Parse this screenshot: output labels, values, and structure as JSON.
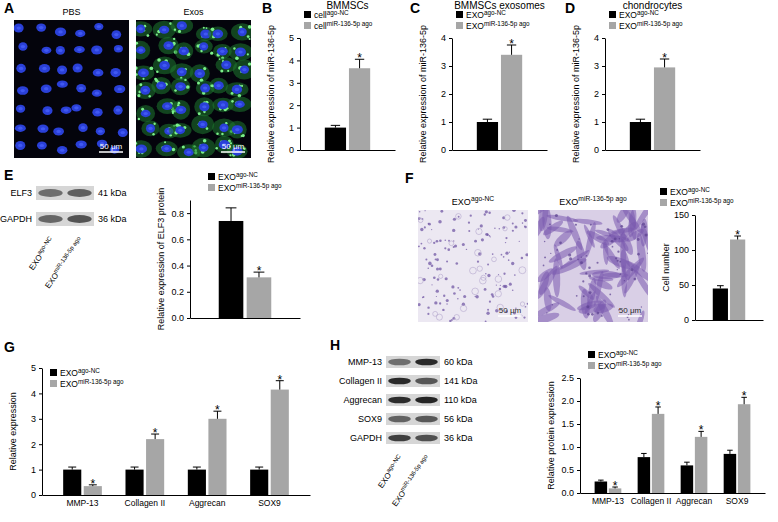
{
  "chart_data": [
    {
      "type": "bar",
      "panel": "B",
      "title": "BMMSCs",
      "ylabel": "Relative expression of miR-136-5p",
      "categories": [
        null
      ],
      "series": [
        {
          "name": "cell",
          "name_superscript": "ago-NC",
          "color": "#000000",
          "values": [
            1.0
          ],
          "errors": [
            0.1
          ]
        },
        {
          "name": "cell",
          "name_superscript": "miR-136-5p ago",
          "color": "#a6a6a6",
          "values": [
            3.65
          ],
          "errors": [
            0.4
          ],
          "annotations": [
            "*"
          ]
        }
      ],
      "ylim": [
        0,
        5
      ],
      "yticks": [
        0,
        1,
        2,
        3,
        4,
        5
      ],
      "legend": "top"
    },
    {
      "type": "bar",
      "panel": "C",
      "title": "BMMSCs exosomes",
      "ylabel": "Relative expression of miR-136-5p",
      "categories": [
        null
      ],
      "series": [
        {
          "name": "EXO",
          "name_superscript": "ago-NC",
          "color": "#000000",
          "values": [
            1.0
          ],
          "errors": [
            0.1
          ]
        },
        {
          "name": "EXO",
          "name_superscript": "miR-136-5p ago",
          "color": "#a6a6a6",
          "values": [
            3.4
          ],
          "errors": [
            0.35
          ],
          "annotations": [
            "*"
          ]
        }
      ],
      "ylim": [
        0,
        4
      ],
      "yticks": [
        0,
        1,
        2,
        3,
        4
      ],
      "legend": "top"
    },
    {
      "type": "bar",
      "panel": "D",
      "title": "chondrocytes",
      "ylabel": "Relative expression of miR-136-5p",
      "categories": [
        null
      ],
      "series": [
        {
          "name": "EXO",
          "name_superscript": "ago-NC",
          "color": "#000000",
          "values": [
            1.0
          ],
          "errors": [
            0.1
          ]
        },
        {
          "name": "EXO",
          "name_superscript": "miR-136-5p ago",
          "color": "#a6a6a6",
          "values": [
            2.95
          ],
          "errors": [
            0.3
          ],
          "annotations": [
            "*"
          ]
        }
      ],
      "ylim": [
        0,
        4
      ],
      "yticks": [
        0,
        1,
        2,
        3,
        4
      ],
      "legend": "top"
    },
    {
      "type": "bar",
      "ylabel": "Relative expression of ELF3 protein",
      "categories": [
        null
      ],
      "series": [
        {
          "name": "EXO",
          "name_superscript": "ago-NC",
          "color": "#000000",
          "values": [
            0.74
          ],
          "errors": [
            0.1
          ]
        },
        {
          "name": "EXO",
          "name_superscript": "miR-136-5p ago",
          "color": "#a6a6a6",
          "values": [
            0.31
          ],
          "errors": [
            0.04
          ],
          "annotations": [
            "*"
          ]
        }
      ],
      "ylim": [
        0,
        0.9
      ],
      "yticks": [
        {
          "value": 0,
          "label": "0.0"
        },
        0.2,
        0.4,
        0.6,
        0.8
      ],
      "legend": "top-right"
    },
    {
      "type": "bar",
      "ylabel": "Cell number",
      "categories": [
        null
      ],
      "series": [
        {
          "name": "EXO",
          "name_superscript": "ago-NC",
          "color": "#000000",
          "values": [
            45
          ],
          "errors": [
            4
          ]
        },
        {
          "name": "EXO",
          "name_superscript": "miR-136-5p ago",
          "color": "#a6a6a6",
          "values": [
            115
          ],
          "errors": [
            5
          ],
          "annotations": [
            "*"
          ]
        }
      ],
      "ylim": [
        0,
        150
      ],
      "yticks": [
        0,
        50,
        100,
        150
      ],
      "legend": "top"
    },
    {
      "type": "bar",
      "panel": "G",
      "ylabel": "Relative expression",
      "categories": [
        "MMP-13",
        "Collagen II",
        "Aggrecan",
        "SOX9"
      ],
      "series": [
        {
          "name": "EXO",
          "name_superscript": "ago-NC",
          "color": "#000000",
          "values": [
            1.0,
            1.0,
            1.0,
            1.0
          ],
          "errors": [
            0.1,
            0.1,
            0.1,
            0.1
          ]
        },
        {
          "name": "EXO",
          "name_superscript": "miR-136-5p ago",
          "color": "#a6a6a6",
          "values": [
            0.35,
            2.2,
            3.0,
            4.15
          ],
          "errors": [
            0.05,
            0.2,
            0.3,
            0.35
          ],
          "annotations": [
            "*",
            "*",
            "*",
            "*"
          ]
        }
      ],
      "ylim": [
        0,
        5
      ],
      "yticks": [
        0,
        1,
        2,
        3,
        4,
        5
      ],
      "legend": "top-left"
    },
    {
      "type": "bar",
      "ylabel": "Relative protein expression",
      "categories": [
        "MMP-13",
        "Collagen II",
        "Aggrecan",
        "SOX9"
      ],
      "series": [
        {
          "name": "EXO",
          "name_superscript": "ago-NC",
          "color": "#000000",
          "values": [
            0.25,
            0.78,
            0.6,
            0.85
          ],
          "errors": [
            0.03,
            0.08,
            0.07,
            0.08
          ]
        },
        {
          "name": "EXO",
          "name_superscript": "miR-136-5p ago",
          "color": "#a6a6a6",
          "values": [
            0.1,
            1.72,
            1.22,
            1.93
          ],
          "errors": [
            0.03,
            0.15,
            0.12,
            0.15
          ],
          "annotations": [
            "*",
            "*",
            "*",
            "*"
          ]
        }
      ],
      "ylim": [
        0,
        2.5
      ],
      "yticks": [
        {
          "value": 0,
          "label": "0.0"
        },
        0.5,
        {
          "value": 1,
          "label": "1.0"
        },
        1.5,
        {
          "value": 2,
          "label": "2.0"
        },
        2.5
      ],
      "legend": "top"
    }
  ],
  "images": [
    {
      "panel": "A",
      "items": [
        {
          "label": "PBS",
          "scale_bar": "50 μm"
        },
        {
          "label": "Exos",
          "scale_bar": "50 μm"
        }
      ]
    },
    {
      "panel": "F",
      "items": [
        {
          "label": "EXO",
          "label_superscript": "ago-NC",
          "scale_bar": "50 μm"
        },
        {
          "label": "EXO",
          "label_superscript": "miR-136-5p ago",
          "scale_bar": "50 μm"
        }
      ]
    }
  ],
  "blots": [
    {
      "panel": "E",
      "rows": [
        {
          "label": "ELF3",
          "size": "41 kDa"
        },
        {
          "label": "GAPDH",
          "size": "36 kDa"
        }
      ],
      "lanes": [
        {
          "label": "EXO",
          "label_superscript": "ago-NC"
        },
        {
          "label": "EXO",
          "label_superscript": "miR-136-5p ago"
        }
      ]
    },
    {
      "panel": "H",
      "rows": [
        {
          "label": "MMP-13",
          "size": "60 kDa"
        },
        {
          "label": "Collagen II",
          "size": "141 kDa"
        },
        {
          "label": "Aggrecan",
          "size": "110 kDa"
        },
        {
          "label": "SOX9",
          "size": "56 kDa"
        },
        {
          "label": "GAPDH",
          "size": "36 kDa"
        }
      ],
      "lanes": [
        {
          "label": "EXO",
          "label_superscript": "ago-NC"
        },
        {
          "label": "EXO",
          "label_superscript": "miR-136-5p ago"
        }
      ]
    }
  ]
}
